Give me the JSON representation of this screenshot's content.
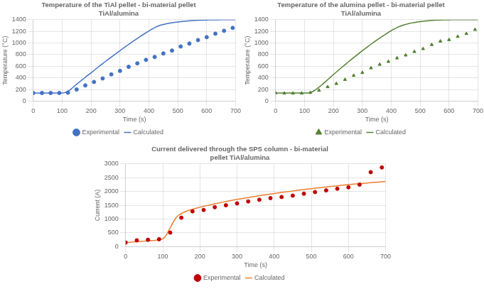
{
  "chart_data": [
    {
      "type": "line",
      "title": "Temperature of the TiAl pellet - bi-material pellet\nTiAl/alumina",
      "x_label": "Time (s)",
      "y_label": "Temperature (°C)",
      "xlim": [
        0,
        700
      ],
      "xticks": [
        0,
        100,
        200,
        300,
        400,
        500,
        600,
        700
      ],
      "ylim": [
        0,
        1400
      ],
      "yticks": [
        0,
        200,
        400,
        600,
        800,
        1000,
        1200,
        1400
      ],
      "grid": true,
      "legend": "bottom",
      "series": [
        {
          "name": "Experimental",
          "type": "scatter",
          "marker": "circle",
          "color": "#4472C4",
          "x": [
            0,
            30,
            60,
            90,
            120,
            150,
            180,
            210,
            240,
            270,
            300,
            330,
            360,
            390,
            420,
            450,
            480,
            510,
            540,
            570,
            600,
            630,
            660,
            690
          ],
          "values": [
            140,
            140,
            140,
            140,
            145,
            200,
            270,
            330,
            390,
            460,
            520,
            590,
            650,
            710,
            760,
            820,
            870,
            940,
            990,
            1050,
            1100,
            1160,
            1210,
            1260
          ]
        },
        {
          "name": "Calculated",
          "type": "line",
          "line_style": "solid",
          "color": "#4472C4",
          "x": [
            0,
            5,
            10,
            15,
            20,
            25,
            30,
            35,
            40,
            45,
            50,
            55,
            60,
            65,
            70,
            75,
            80,
            85,
            90,
            95,
            100,
            105,
            110,
            115,
            120,
            125,
            130,
            135,
            140,
            145,
            150,
            155,
            160,
            165,
            170,
            175,
            180,
            185,
            190,
            195,
            200,
            210,
            220,
            230,
            240,
            250,
            260,
            270,
            280,
            290,
            300,
            310,
            320,
            330,
            340,
            350,
            360,
            370,
            380,
            390,
            400,
            410,
            420,
            430,
            440,
            450,
            460,
            470,
            480,
            490,
            500,
            510,
            520,
            530,
            540,
            550,
            560,
            570,
            580,
            590,
            600,
            610,
            620,
            630,
            640,
            650,
            660,
            670,
            680,
            690,
            700
          ],
          "values": [
            140,
            140,
            140,
            140,
            140,
            140,
            140,
            140,
            140,
            140,
            140,
            140,
            140,
            140,
            140,
            140,
            140,
            140,
            140,
            140,
            140,
            143,
            148,
            158,
            170,
            185,
            205,
            225,
            248,
            268,
            290,
            310,
            330,
            350,
            370,
            390,
            410,
            430,
            450,
            468,
            487,
            527,
            567,
            607,
            645,
            683,
            720,
            758,
            795,
            832,
            868,
            904,
            940,
            976,
            1010,
            1044,
            1078,
            1112,
            1144,
            1176,
            1208,
            1238,
            1265,
            1288,
            1305,
            1318,
            1330,
            1340,
            1348,
            1355,
            1362,
            1368,
            1373,
            1377,
            1381,
            1384,
            1387,
            1390,
            1392,
            1394,
            1396,
            1397,
            1398,
            1399,
            1399,
            1400,
            1400,
            1400,
            1400,
            1400,
            1400
          ]
        }
      ]
    },
    {
      "type": "line",
      "title": "Temperature of the alumina pellet - bi-material pellet\nTiAl/alumina",
      "x_label": "Time (s)",
      "y_label": "Temperature (°C)",
      "xlim": [
        0,
        700
      ],
      "xticks": [
        0,
        100,
        200,
        300,
        400,
        500,
        600,
        700
      ],
      "ylim": [
        0,
        1400
      ],
      "yticks": [
        0,
        200,
        400,
        600,
        800,
        1000,
        1200,
        1400
      ],
      "grid": true,
      "legend": "bottom",
      "series": [
        {
          "name": "Experimental",
          "type": "scatter",
          "marker": "triangle",
          "color": "#538135",
          "x": [
            0,
            30,
            60,
            90,
            120,
            150,
            180,
            210,
            240,
            270,
            300,
            330,
            360,
            390,
            420,
            450,
            480,
            510,
            540,
            570,
            600,
            630,
            660,
            690
          ],
          "values": [
            140,
            135,
            135,
            135,
            145,
            185,
            245,
            300,
            370,
            440,
            490,
            570,
            630,
            680,
            740,
            790,
            850,
            900,
            970,
            1030,
            1055,
            1110,
            1160,
            1230
          ]
        },
        {
          "name": "Calculated",
          "type": "line",
          "line_style": "solid",
          "color": "#538135",
          "x": [
            0,
            5,
            10,
            15,
            20,
            25,
            30,
            35,
            40,
            45,
            50,
            55,
            60,
            65,
            70,
            75,
            80,
            85,
            90,
            95,
            100,
            105,
            110,
            115,
            120,
            125,
            130,
            135,
            140,
            145,
            150,
            155,
            160,
            165,
            170,
            175,
            180,
            185,
            190,
            195,
            200,
            210,
            220,
            230,
            240,
            250,
            260,
            270,
            280,
            290,
            300,
            310,
            320,
            330,
            340,
            350,
            360,
            370,
            380,
            390,
            400,
            410,
            420,
            430,
            440,
            450,
            460,
            470,
            480,
            490,
            500,
            510,
            520,
            530,
            540,
            550,
            560,
            570,
            580,
            590,
            600,
            610,
            620,
            630,
            640,
            650,
            660,
            670,
            680,
            690,
            700
          ],
          "values": [
            140,
            140,
            140,
            140,
            140,
            140,
            140,
            140,
            140,
            140,
            140,
            140,
            140,
            140,
            140,
            140,
            140,
            140,
            140,
            140,
            140,
            140,
            140,
            143,
            148,
            158,
            170,
            185,
            202,
            220,
            240,
            260,
            280,
            302,
            324,
            346,
            368,
            390,
            412,
            435,
            457,
            500,
            543,
            585,
            627,
            668,
            709,
            749,
            789,
            828,
            867,
            905,
            942,
            979,
            1015,
            1050,
            1084,
            1118,
            1150,
            1182,
            1212,
            1240,
            1265,
            1287,
            1305,
            1320,
            1333,
            1344,
            1353,
            1361,
            1368,
            1374,
            1379,
            1383,
            1387,
            1390,
            1393,
            1395,
            1397,
            1398,
            1399,
            1400,
            1400,
            1400,
            1400,
            1400,
            1400,
            1400,
            1400,
            1400,
            1400
          ]
        }
      ]
    },
    {
      "type": "line",
      "title": "Current delivered through the SPS column - bi-material\npellet TiAl/alumina",
      "x_label": "Time (s)",
      "y_label": "Current (A)",
      "xlim": [
        0,
        700
      ],
      "xticks": [
        0,
        100,
        200,
        300,
        400,
        500,
        600,
        700
      ],
      "ylim": [
        0,
        3000
      ],
      "yticks": [
        0,
        500,
        1000,
        1500,
        2000,
        2500,
        3000
      ],
      "grid": true,
      "legend": "bottom",
      "series": [
        {
          "name": "Experimental",
          "type": "scatter",
          "marker": "circle",
          "color": "#C00000",
          "x": [
            0,
            30,
            60,
            90,
            120,
            150,
            180,
            210,
            240,
            270,
            300,
            330,
            360,
            390,
            420,
            450,
            480,
            510,
            540,
            570,
            600,
            630,
            660,
            690
          ],
          "values": [
            150,
            230,
            250,
            270,
            510,
            1050,
            1280,
            1330,
            1430,
            1500,
            1570,
            1640,
            1700,
            1760,
            1800,
            1850,
            1920,
            1980,
            2040,
            2100,
            2150,
            2250,
            2700,
            2870
          ]
        },
        {
          "name": "Calculated",
          "type": "line",
          "line_style": "solid",
          "color": "#ED7D31",
          "x": [
            0,
            5,
            10,
            15,
            20,
            25,
            30,
            35,
            40,
            45,
            50,
            55,
            60,
            65,
            70,
            75,
            80,
            85,
            90,
            95,
            100,
            105,
            110,
            115,
            120,
            125,
            130,
            135,
            140,
            145,
            150,
            155,
            160,
            165,
            170,
            175,
            180,
            185,
            190,
            195,
            200,
            210,
            220,
            230,
            240,
            250,
            260,
            270,
            280,
            290,
            300,
            310,
            320,
            330,
            340,
            350,
            360,
            370,
            380,
            390,
            400,
            410,
            420,
            430,
            440,
            450,
            460,
            470,
            480,
            490,
            500,
            510,
            520,
            530,
            540,
            550,
            560,
            570,
            580,
            590,
            600,
            610,
            620,
            630,
            640,
            650,
            660,
            670,
            680,
            690,
            700
          ],
          "values": [
            150,
            155,
            160,
            165,
            170,
            175,
            180,
            185,
            190,
            195,
            200,
            205,
            210,
            215,
            220,
            225,
            232,
            240,
            250,
            265,
            285,
            340,
            430,
            560,
            680,
            810,
            935,
            1040,
            1110,
            1160,
            1200,
            1235,
            1265,
            1290,
            1315,
            1335,
            1355,
            1375,
            1393,
            1410,
            1428,
            1462,
            1493,
            1524,
            1553,
            1582,
            1609,
            1636,
            1662,
            1687,
            1712,
            1736,
            1759,
            1782,
            1804,
            1826,
            1847,
            1867,
            1888,
            1908,
            1927,
            1946,
            1965,
            1983,
            2001,
            2019,
            2036,
            2053,
            2069,
            2085,
            2101,
            2117,
            2132,
            2147,
            2162,
            2177,
            2192,
            2206,
            2220,
            2234,
            2247,
            2260,
            2272,
            2284,
            2296,
            2308,
            2319,
            2330,
            2341,
            2352,
            2362
          ]
        }
      ]
    }
  ]
}
